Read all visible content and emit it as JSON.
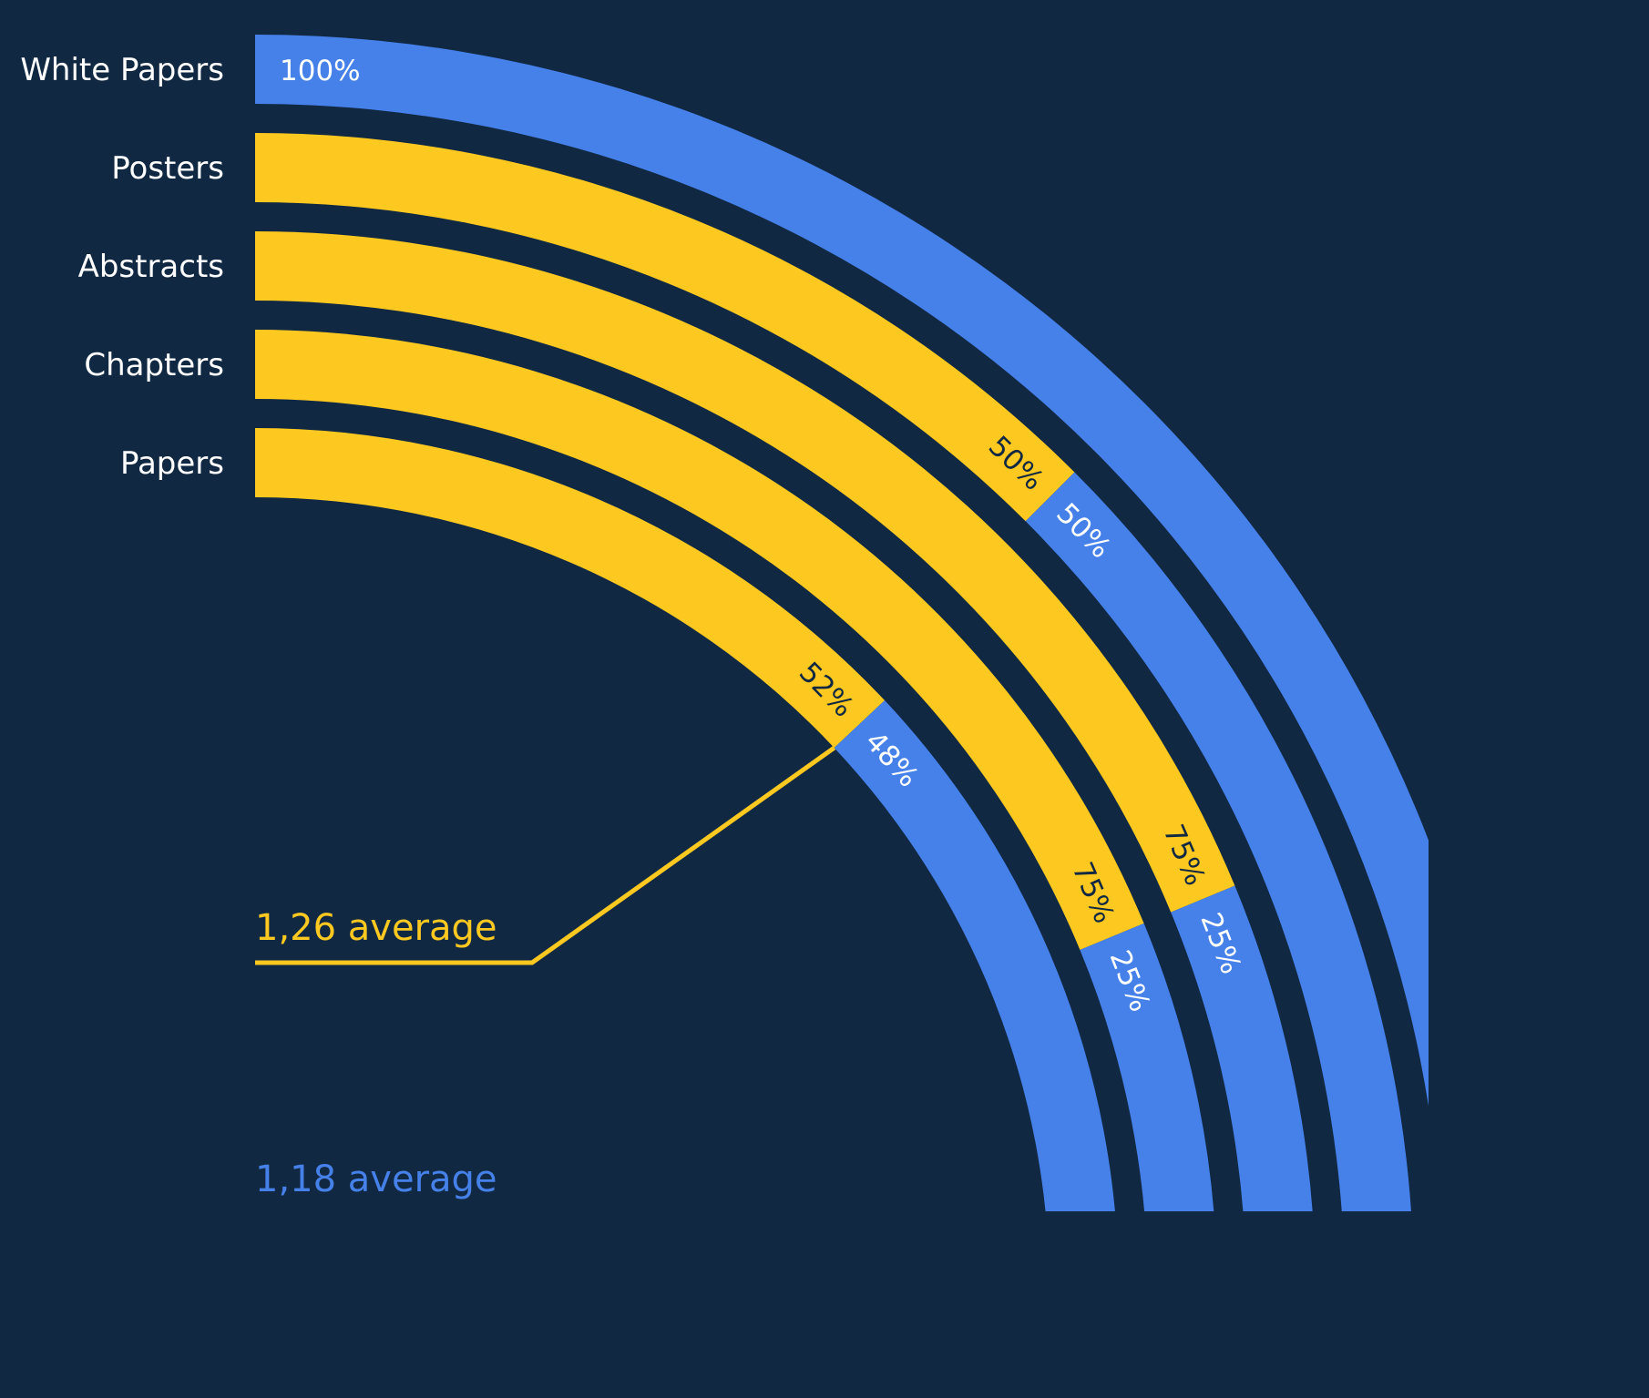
{
  "chart_data": {
    "type": "radial-stacked-bar",
    "colors": {
      "background": "#112842",
      "series_a": "#fdc920",
      "series_b": "#4681ea",
      "label_on_a": "#112842",
      "label_on_b": "#ffffff"
    },
    "categories": [
      "White Papers",
      "Posters",
      "Abstracts",
      "Chapters",
      "Papers"
    ],
    "series": [
      {
        "values": [
          0,
          50,
          75,
          75,
          52
        ],
        "labels": [
          "",
          "50%",
          "75%",
          "75%",
          "52%"
        ]
      },
      {
        "values": [
          100,
          50,
          25,
          25,
          48
        ],
        "labels": [
          "100%",
          "50%",
          "25%",
          "25%",
          "48%"
        ]
      }
    ],
    "annotations": {
      "average_a": "1,26 average",
      "average_b": "1,18 average"
    }
  }
}
